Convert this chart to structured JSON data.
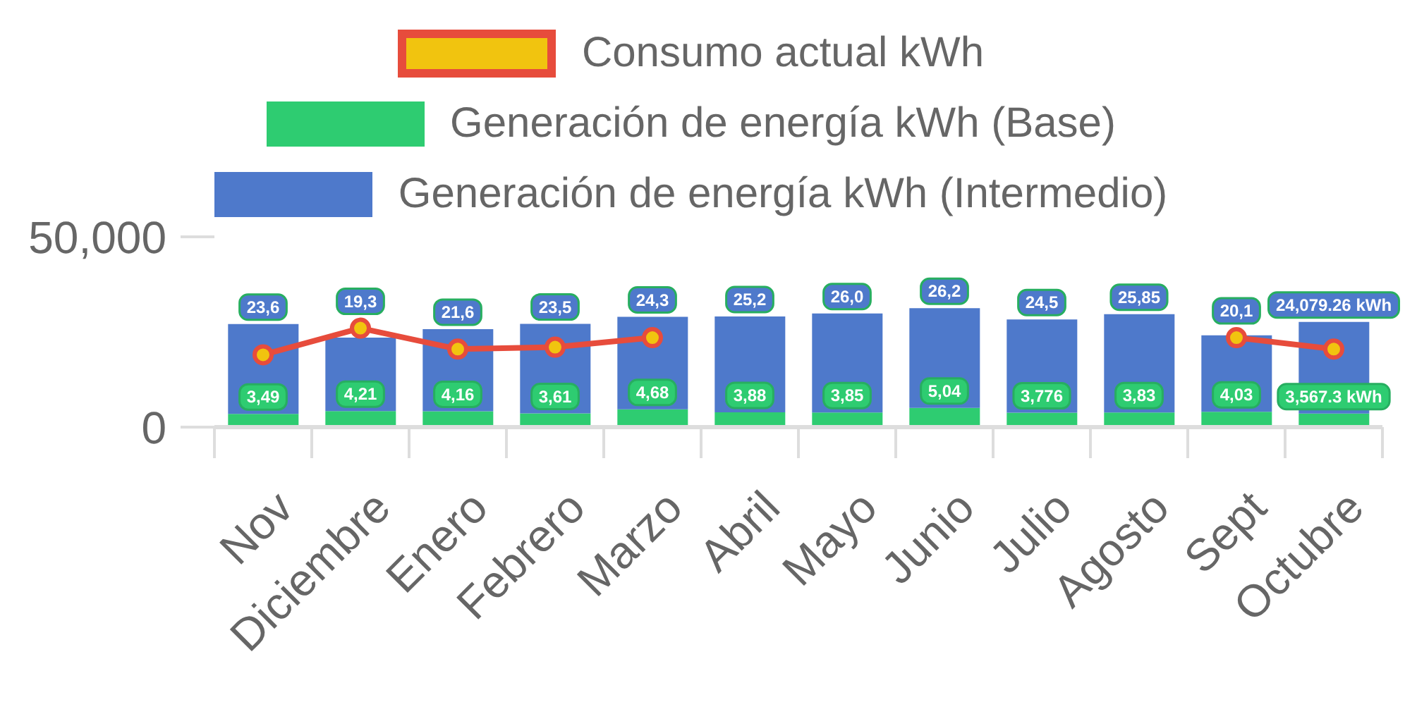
{
  "chart_data": {
    "type": "bar",
    "categories": [
      "Nov",
      "Diciembre",
      "Enero",
      "Febrero",
      "Marzo",
      "Abril",
      "Mayo",
      "Junio",
      "Julio",
      "Agosto",
      "Sept",
      "Octubre"
    ],
    "series": [
      {
        "name": "Consumo actual kWh",
        "type": "line",
        "color": "#e74c3c",
        "colors": [
          "#f1c40f",
          "#f1c40f",
          "#f1c40f",
          "#f1c40f",
          "#f1c40f",
          null,
          null,
          null,
          null,
          null,
          "#f1c40f",
          "#f1c40f"
        ],
        "values": [
          19000,
          26000,
          20500,
          21000,
          23500,
          null,
          null,
          null,
          null,
          null,
          23500,
          20500
        ]
      },
      {
        "name": "Generación de energía kWh (Base)",
        "color": "#2ecc71",
        "values": [
          3490,
          4210,
          4160,
          3610,
          4680,
          3880,
          3850,
          5040,
          3776,
          3830,
          4030,
          3567.3
        ],
        "value_labels": [
          null,
          null,
          null,
          null,
          null,
          null,
          null,
          null,
          "3,776",
          null,
          null,
          "3,567.3 kWh"
        ]
      },
      {
        "name": "Generación de energía kWh (Intermedio)",
        "color": "#4e79cb",
        "values": [
          23600,
          19300,
          21600,
          23500,
          24300,
          25200,
          26000,
          26200,
          24500,
          25850,
          20100,
          24079.26
        ],
        "value_labels": [
          null,
          null,
          null,
          null,
          null,
          null,
          null,
          null,
          null,
          null,
          null,
          "24,079.26 kWh"
        ]
      }
    ],
    "annotations": [
      {
        "text": "3,49",
        "x": "Nov",
        "y": 3490
      },
      {
        "text": "4,21",
        "x": "Diciembre",
        "y": 4210
      },
      {
        "text": "4,16",
        "x": "Enero",
        "y": 4160
      },
      {
        "text": "3,61",
        "x": "Febrero",
        "y": 3610
      },
      {
        "text": "4,68",
        "x": "Marzo",
        "y": 4680
      },
      {
        "text": "3,88",
        "x": "Abril",
        "y": 3880
      },
      {
        "text": "3,85",
        "x": "Mayo",
        "y": 3850
      },
      {
        "text": "5,04",
        "x": "Junio",
        "y": 5040
      },
      {
        "text": "3,83",
        "x": "Agosto",
        "y": 3830
      },
      {
        "text": "4,03",
        "x": "Sept",
        "y": 4030
      },
      {
        "text": "23,6",
        "x": "Nov",
        "y": 27090
      },
      {
        "text": "19,3",
        "x": "Diciembre",
        "y": 23510
      },
      {
        "text": "21,6",
        "x": "Enero",
        "y": 25760
      },
      {
        "text": "23,5",
        "x": "Febrero",
        "y": 27110
      },
      {
        "text": "24,3",
        "x": "Marzo",
        "y": 28980
      },
      {
        "text": "25,2",
        "x": "Abril",
        "y": 29080
      },
      {
        "text": "26,0",
        "x": "Mayo",
        "y": 29850
      },
      {
        "text": "26,2",
        "x": "Junio",
        "y": 31240
      },
      {
        "text": "24,5",
        "x": "Julio",
        "y": 28276
      },
      {
        "text": "25,85",
        "x": "Agosto",
        "y": 29680
      },
      {
        "text": "20,1",
        "x": "Sept",
        "y": 24130
      }
    ],
    "stacked": true,
    "ylim": [
      0,
      50000
    ],
    "yticks": [
      0,
      {
        "value": 50000,
        "label": "50,000"
      }
    ],
    "grid": false,
    "legend": "top",
    "marker": "circle"
  }
}
